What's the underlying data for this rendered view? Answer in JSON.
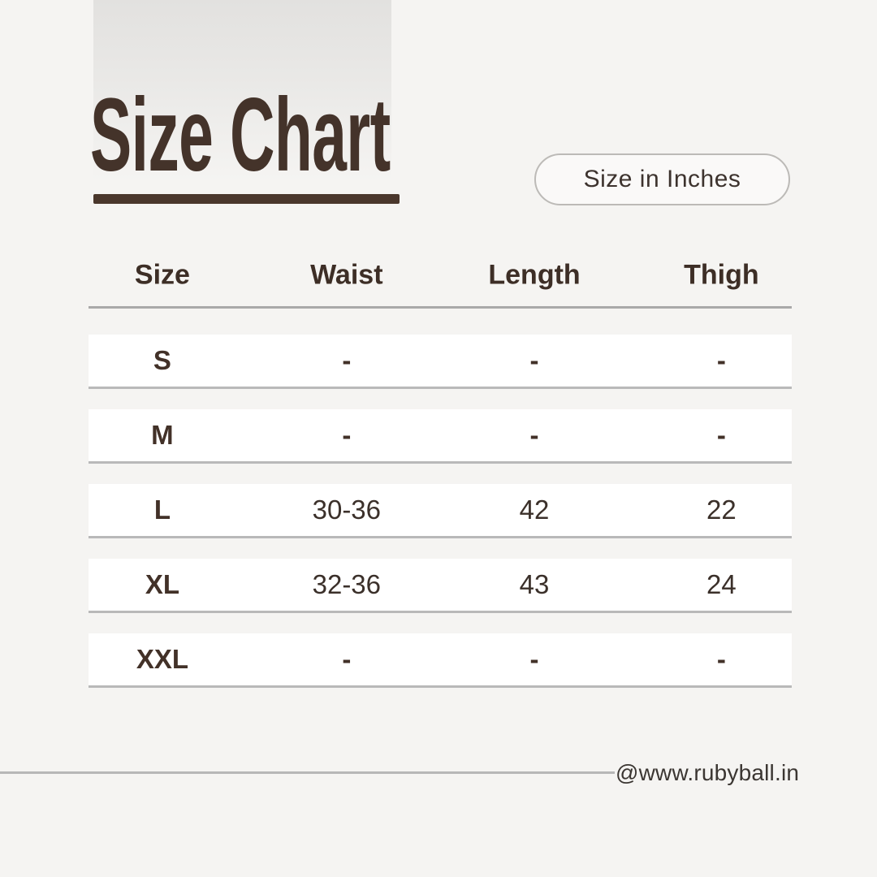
{
  "page": {
    "background_color": "#f5f4f2",
    "accent_brown": "#44332a",
    "row_background": "#ffffff",
    "divider_gray": "#b9b9b9"
  },
  "header": {
    "title": "Size Chart",
    "unit_badge": "Size in Inches"
  },
  "table": {
    "columns": [
      "Size",
      "Waist",
      "Length",
      "Thigh"
    ],
    "rows": [
      {
        "size": "S",
        "waist": "-",
        "length": "-",
        "thigh": "-"
      },
      {
        "size": "M",
        "waist": "-",
        "length": "-",
        "thigh": "-"
      },
      {
        "size": "L",
        "waist": "30-36",
        "length": "42",
        "thigh": "22"
      },
      {
        "size": "XL",
        "waist": "32-36",
        "length": "43",
        "thigh": "24"
      },
      {
        "size": "XXL",
        "waist": "-",
        "length": "-",
        "thigh": "-"
      }
    ]
  },
  "footer": {
    "handle": "@www.rubyball.in"
  }
}
